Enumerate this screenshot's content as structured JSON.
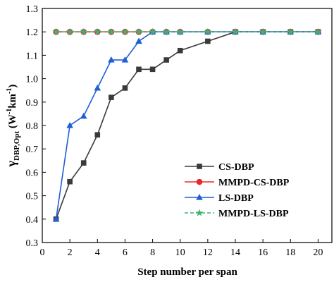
{
  "chart_data": {
    "type": "line",
    "xlabel": "Step number per span",
    "ylabel": {
      "main": "γ",
      "subscript": "DBP,Opt",
      "unit_open": " (W",
      "unit_exp1": "-1",
      "unit_mid": "km",
      "unit_exp2": "-1",
      "unit_close": ")"
    },
    "xlim": [
      0,
      21
    ],
    "ylim": [
      0.3,
      1.3
    ],
    "xticks": [
      "0",
      "2",
      "4",
      "6",
      "8",
      "10",
      "12",
      "14",
      "16",
      "18",
      "20"
    ],
    "yticks": [
      "0.3",
      "0.4",
      "0.5",
      "0.6",
      "0.7",
      "0.8",
      "0.9",
      "1.0",
      "1.1",
      "1.2",
      "1.3"
    ],
    "grid": false,
    "legend_position": "bottom-right",
    "series": [
      {
        "name": "CS-DBP",
        "color": "#3a3a3a",
        "marker": "square",
        "dash": "solid",
        "x": [
          1,
          2,
          3,
          4,
          5,
          6,
          7,
          8,
          9,
          10,
          12,
          14,
          16,
          18,
          20
        ],
        "y": [
          0.4,
          0.56,
          0.64,
          0.76,
          0.92,
          0.96,
          1.04,
          1.04,
          1.08,
          1.12,
          1.16,
          1.2,
          1.2,
          1.2,
          1.2
        ]
      },
      {
        "name": "MMPD-CS-DBP",
        "color": "#e8282c",
        "marker": "circle",
        "dash": "solid",
        "x": [
          1,
          2,
          3,
          4,
          5,
          6,
          7,
          8,
          9,
          10,
          12,
          14,
          16,
          18,
          20
        ],
        "y": [
          1.2,
          1.2,
          1.2,
          1.2,
          1.2,
          1.2,
          1.2,
          1.2,
          1.2,
          1.2,
          1.2,
          1.2,
          1.2,
          1.2,
          1.2
        ]
      },
      {
        "name": "LS-DBP",
        "color": "#1f5fd6",
        "marker": "triangle",
        "dash": "solid",
        "x": [
          1,
          2,
          3,
          4,
          5,
          6,
          7,
          8,
          9,
          10,
          12,
          14,
          16,
          18,
          20
        ],
        "y": [
          0.4,
          0.8,
          0.84,
          0.96,
          1.08,
          1.08,
          1.16,
          1.2,
          1.2,
          1.2,
          1.2,
          1.2,
          1.2,
          1.2,
          1.2
        ]
      },
      {
        "name": "MMPD-LS-DBP",
        "color": "#3cb371",
        "marker": "star",
        "dash": "dashed",
        "x": [
          1,
          2,
          3,
          4,
          5,
          6,
          7,
          8,
          9,
          10,
          12,
          14,
          16,
          18,
          20
        ],
        "y": [
          1.2,
          1.2,
          1.2,
          1.2,
          1.2,
          1.2,
          1.2,
          1.2,
          1.2,
          1.2,
          1.2,
          1.2,
          1.2,
          1.2,
          1.2
        ]
      }
    ]
  }
}
